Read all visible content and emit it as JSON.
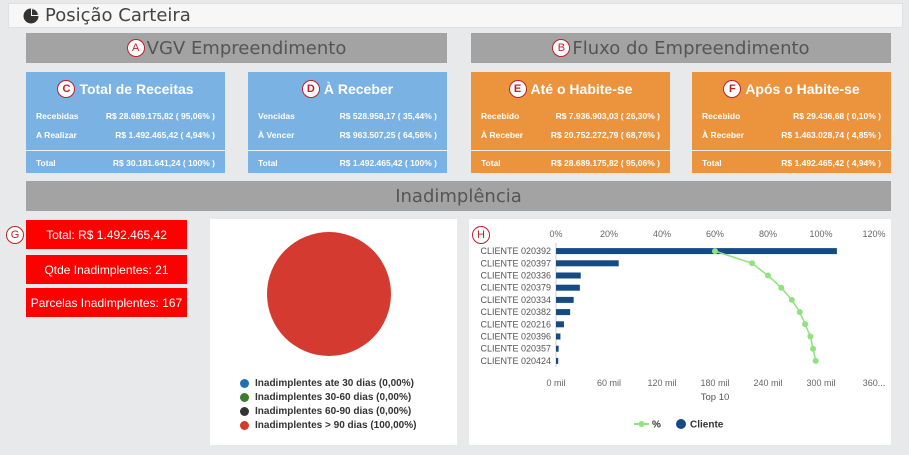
{
  "page": {
    "title": "Posição Carteira"
  },
  "sections": {
    "vgv": {
      "marker": "A",
      "title": "VGV Empreendimento"
    },
    "fluxo": {
      "marker": "B",
      "title": "Fluxo do Empreendimento"
    },
    "inad": {
      "title": "Inadimplência"
    }
  },
  "cards": [
    {
      "marker": "C",
      "title": "Total de Receitas",
      "color": "#79b2e3",
      "rows": [
        {
          "label": "Recebidas",
          "value": "R$ 28.689.175,82 ( 95,06% )"
        },
        {
          "label": "A Realizar",
          "value": "R$ 1.492.465,42 ( 4,94% )"
        }
      ],
      "total": {
        "label": "Total",
        "value": "R$ 30.181.641,24 ( 100% )"
      }
    },
    {
      "marker": "D",
      "title": "À Receber",
      "color": "#79b2e3",
      "rows": [
        {
          "label": "Vencidas",
          "value": "R$ 528.958,17 ( 35,44% )"
        },
        {
          "label": "À Vencer",
          "value": "R$ 963.507,25 ( 64,56% )"
        }
      ],
      "total": {
        "label": "Total",
        "value": "R$ 1.492.465,42 ( 100% )"
      }
    },
    {
      "marker": "E",
      "title": "Até o Habite-se",
      "color": "#ec943d",
      "rows": [
        {
          "label": "Recebido",
          "value": "R$ 7.936.903,03 ( 26,30% )"
        },
        {
          "label": "À Receber",
          "value": "R$ 20.752.272,79 ( 68,76% )"
        }
      ],
      "total": {
        "label": "Total",
        "value": "R$ 28.689.175,82 ( 95,06% )"
      }
    },
    {
      "marker": "F",
      "title": "Após o Habite-se",
      "color": "#ec943d",
      "rows": [
        {
          "label": "Recebido",
          "value": "R$ 29.436,68 ( 0,10% )"
        },
        {
          "label": "À Receber",
          "value": "R$ 1.463.028,74 ( 4,85% )"
        }
      ],
      "total": {
        "label": "Total",
        "value": "R$ 1.492.465,42 ( 4,94% )"
      }
    }
  ],
  "inadimplencia": {
    "marker": "G",
    "total": "Total: R$ 1.492.465,42",
    "qtde": "Qtde Inadimplentes: 21",
    "parcelas": "Parcelas Inadimplentes: 167"
  },
  "pie": {
    "legend": [
      {
        "label": "Inadimplentes ate 30 dias (0,00%)",
        "color": "#1f6fb2",
        "value": 0
      },
      {
        "label": "Inadimplentes 30-60 dias (0,00%)",
        "color": "#3a7d2a",
        "value": 0
      },
      {
        "label": "Inadimplentes 60-90 dias (0,00%)",
        "color": "#333333",
        "value": 0
      },
      {
        "label": "Inadimplentes > 90 dias (100,00%)",
        "color": "#d43a2f",
        "value": 100
      }
    ]
  },
  "chart_data": {
    "type": "bar",
    "marker": "H",
    "orientation": "horizontal",
    "categories": [
      "CLIENTE 020392",
      "CLIENTE 020397",
      "CLIENTE 020336",
      "CLIENTE 020379",
      "CLIENTE 020334",
      "CLIENTE 020382",
      "CLIENTE 020216",
      "CLIENTE 020396",
      "CLIENTE 020357",
      "CLIENTE 020424"
    ],
    "series": [
      {
        "name": "Cliente",
        "type": "bar",
        "color": "#154a82",
        "values": [
          318000,
          71000,
          28000,
          27000,
          20000,
          16000,
          9000,
          5000,
          3000,
          2500
        ]
      },
      {
        "name": "%",
        "type": "line",
        "color": "#90e27e",
        "values": [
          60,
          74,
          80,
          85,
          89,
          92,
          94,
          96,
          97,
          98
        ]
      }
    ],
    "xlabel": "Top 10",
    "x_bottom_ticks": [
      "0 mil",
      "60 mil",
      "120 mil",
      "180 mil",
      "240 mil",
      "300 mil",
      "360..."
    ],
    "x_bottom_range": [
      0,
      360000
    ],
    "x_top_ticks": [
      "0%",
      "20%",
      "40%",
      "60%",
      "80%",
      "100%",
      "120%"
    ],
    "x_top_range": [
      0,
      120
    ],
    "legend": [
      "%",
      "Cliente"
    ]
  }
}
